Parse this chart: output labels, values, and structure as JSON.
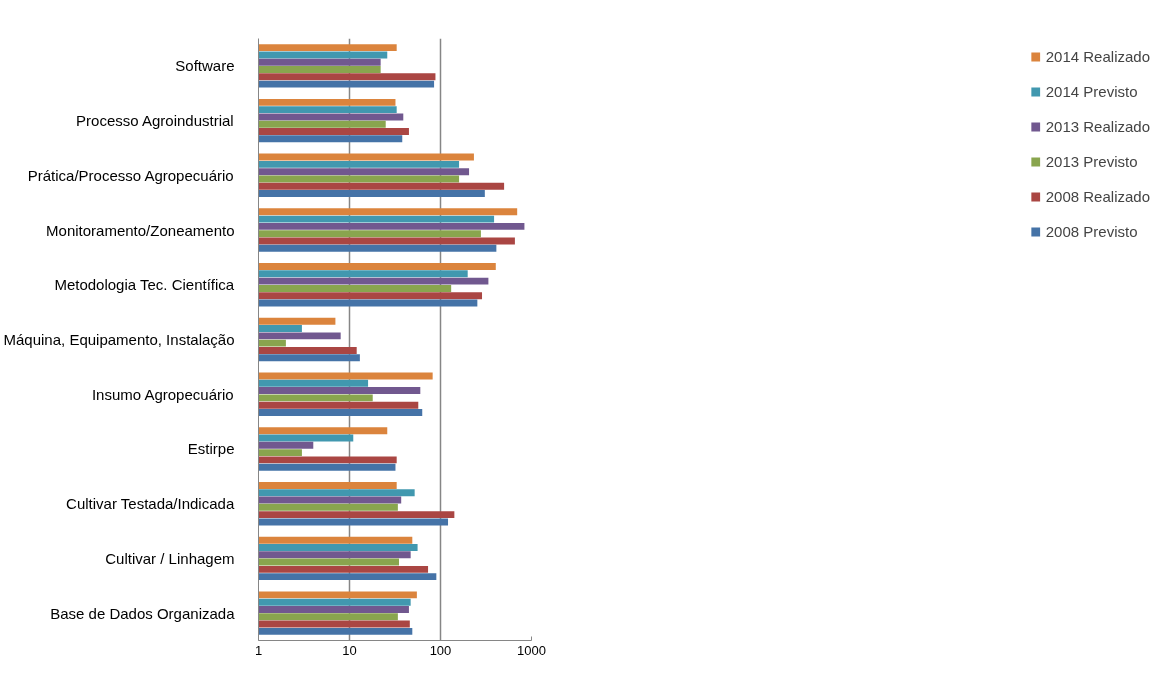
{
  "chart_data": {
    "type": "bar",
    "orientation": "horizontal",
    "log": "x",
    "categories": [
      "Software",
      "Processo Agroindustrial",
      "Prática/Processo Agropecuário",
      "Monitoramento/Zoneamento",
      "Metodologia Tec. Científica",
      "Máquina, Equipamento, Instalação",
      "Insumo Agropecuário",
      "Estirpe",
      "Cultivar Testada/Indicada",
      "Cultivar / Linhagem",
      "Base de Dados Organizada"
    ],
    "series": [
      {
        "name": "2014 Realizado",
        "color": "#db843d",
        "values": [
          33,
          32,
          233,
          696,
          405,
          7,
          82,
          26,
          33,
          49,
          55
        ]
      },
      {
        "name": "2014 Previsto",
        "color": "#4198af",
        "values": [
          26,
          33,
          160,
          388,
          199,
          3,
          16,
          11,
          52,
          56,
          47
        ]
      },
      {
        "name": "2013 Realizado",
        "color": "#71588f",
        "values": [
          22,
          39,
          206,
          836,
          336,
          8,
          60,
          4,
          37,
          47,
          45
        ]
      },
      {
        "name": "2013 Previsto",
        "color": "#89a54e",
        "values": [
          22,
          25,
          160,
          278,
          131,
          2,
          18,
          3,
          34,
          35,
          34
        ]
      },
      {
        "name": "2008 Realizado",
        "color": "#aa4643",
        "values": [
          88,
          45,
          500,
          657,
          286,
          12,
          57,
          33,
          142,
          73,
          46
        ]
      },
      {
        "name": "2008 Previsto",
        "color": "#4573a7",
        "values": [
          85,
          38,
          307,
          411,
          254,
          13,
          63,
          32,
          121,
          90,
          49
        ]
      }
    ],
    "xlim": [
      1,
      1000
    ],
    "xticks": [
      1,
      10,
      100,
      1000
    ],
    "grid": "x",
    "legend": "right"
  }
}
